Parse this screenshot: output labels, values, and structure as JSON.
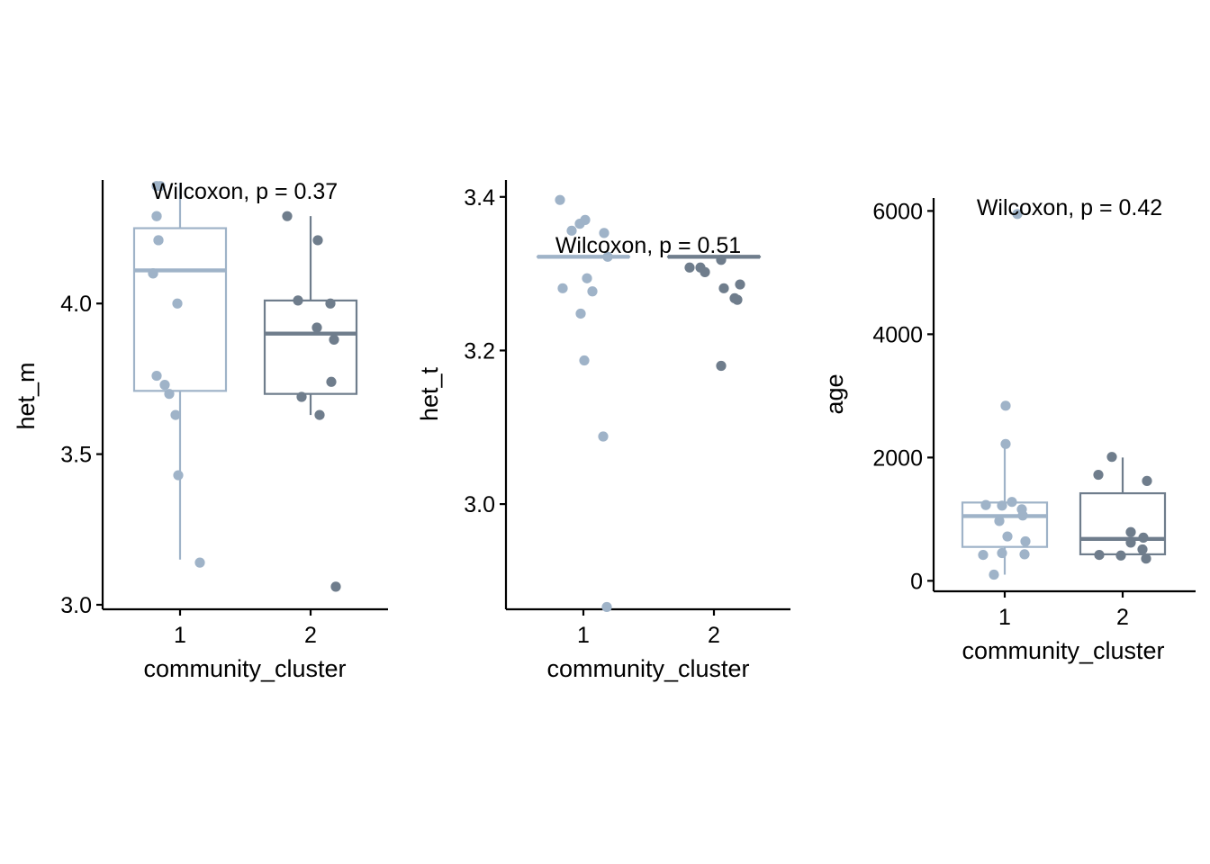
{
  "colors": {
    "cluster_1": "#9fb3c8",
    "cluster_2": "#6f7d8c",
    "axis": "#000000"
  },
  "chart_data": [
    {
      "type": "box",
      "xlabel": "community_cluster",
      "ylabel": "het_m",
      "categories": [
        "1",
        "2"
      ],
      "ylim": [
        2.985,
        4.41
      ],
      "yticks": [
        3.0,
        3.5,
        4.0
      ],
      "ytick_labels": [
        "3.0",
        "3.5",
        "4.0"
      ],
      "annotation": "Wilcoxon, p = 0.37",
      "boxes": [
        {
          "category": "1",
          "q1": 3.71,
          "median": 4.11,
          "q3": 4.25,
          "whisker_low": 3.15,
          "whisker_high": 4.4
        },
        {
          "category": "2",
          "q1": 3.7,
          "median": 3.9,
          "q3": 4.01,
          "whisker_low": 3.63,
          "whisker_high": 4.29
        }
      ],
      "points": [
        {
          "category": "1",
          "values": [
            4.39,
            4.39,
            4.29,
            4.29,
            4.21,
            4.21,
            4.1,
            4.1,
            4.0,
            3.76,
            3.73,
            3.7,
            3.63,
            3.43,
            3.14
          ]
        },
        {
          "category": "2",
          "values": [
            4.29,
            4.21,
            4.01,
            4.0,
            3.92,
            3.88,
            3.74,
            3.69,
            3.63,
            3.06
          ]
        }
      ]
    },
    {
      "type": "box",
      "xlabel": "community_cluster",
      "ylabel": "het_t",
      "categories": [
        "1",
        "2"
      ],
      "ylim": [
        2.863,
        3.422
      ],
      "yticks": [
        3.0,
        3.2,
        3.4
      ],
      "ytick_labels": [
        "3.0",
        "3.2",
        "3.4"
      ],
      "annotation": "Wilcoxon, p = 0.51",
      "boxes": [
        {
          "category": "1",
          "q1": 3.322,
          "median": 3.322,
          "q3": 3.322,
          "whisker_low": 3.322,
          "whisker_high": 3.322
        },
        {
          "category": "2",
          "q1": 3.322,
          "median": 3.322,
          "q3": 3.322,
          "whisker_low": 3.322,
          "whisker_high": 3.322
        }
      ],
      "points": [
        {
          "category": "1",
          "values": [
            3.396,
            3.37,
            3.365,
            3.356,
            3.353,
            3.322,
            3.294,
            3.281,
            3.277,
            3.248,
            3.187,
            3.088,
            2.866
          ]
        },
        {
          "category": "2",
          "values": [
            3.318,
            3.308,
            3.308,
            3.302,
            3.286,
            3.281,
            3.268,
            3.266,
            3.18
          ]
        }
      ]
    },
    {
      "type": "box",
      "xlabel": "community_cluster",
      "ylabel": "age",
      "categories": [
        "1",
        "2"
      ],
      "ylim": [
        -170,
        6210
      ],
      "yticks": [
        0,
        2000,
        4000,
        6000
      ],
      "ytick_labels": [
        "0",
        "2000",
        "4000",
        "6000"
      ],
      "annotation": "Wilcoxon, p = 0.42",
      "boxes": [
        {
          "category": "1",
          "q1": 550,
          "median": 1050,
          "q3": 1270,
          "whisker_low": 100,
          "whisker_high": 2220
        },
        {
          "category": "2",
          "q1": 430,
          "median": 680,
          "q3": 1420,
          "whisker_low": 350,
          "whisker_high": 2000
        }
      ],
      "points": [
        {
          "category": "1",
          "values": [
            5950,
            2840,
            2220,
            1280,
            1230,
            1220,
            1160,
            1060,
            970,
            720,
            640,
            450,
            430,
            420,
            100
          ]
        },
        {
          "category": "2",
          "values": [
            2010,
            1720,
            1620,
            790,
            700,
            620,
            510,
            420,
            410,
            360
          ]
        }
      ]
    }
  ]
}
